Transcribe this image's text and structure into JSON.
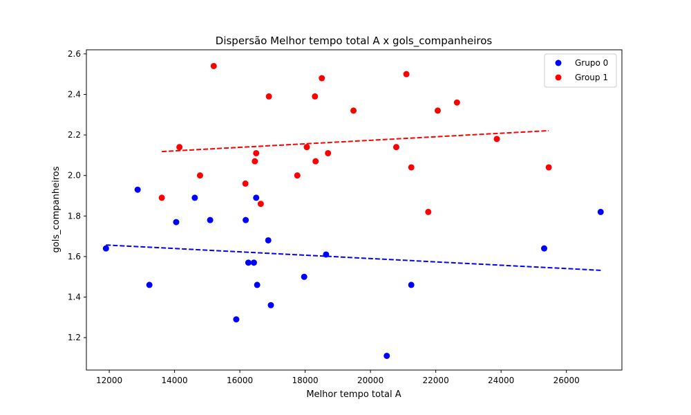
{
  "chart_data": {
    "type": "scatter",
    "title": "Dispersão Melhor tempo total A x gols_companheiros",
    "xlabel": "Melhor tempo total A",
    "ylabel": "gols_companheiros",
    "xlim": [
      11300,
      27700
    ],
    "ylim": [
      1.04,
      2.62
    ],
    "xticks": [
      12000,
      14000,
      16000,
      18000,
      20000,
      22000,
      24000,
      26000
    ],
    "yticks": [
      1.2,
      1.4,
      1.6,
      1.8,
      2.0,
      2.2,
      2.4,
      2.6
    ],
    "xtick_labels": [
      "12000",
      "14000",
      "16000",
      "18000",
      "20000",
      "22000",
      "24000",
      "26000"
    ],
    "ytick_labels": [
      "1.2",
      "1.4",
      "1.6",
      "1.8",
      "2.0",
      "2.2",
      "2.4",
      "2.6"
    ],
    "grid": false,
    "legend": "top-right",
    "series": [
      {
        "name": "Grupo 0",
        "color": "#0000ff",
        "points": [
          [
            11900,
            1.64
          ],
          [
            12870,
            1.93
          ],
          [
            13230,
            1.46
          ],
          [
            14050,
            1.77
          ],
          [
            14620,
            1.89
          ],
          [
            15090,
            1.78
          ],
          [
            15890,
            1.29
          ],
          [
            16180,
            1.78
          ],
          [
            16260,
            1.57
          ],
          [
            16430,
            1.57
          ],
          [
            16500,
            1.89
          ],
          [
            16530,
            1.46
          ],
          [
            16870,
            1.68
          ],
          [
            16950,
            1.36
          ],
          [
            17970,
            1.5
          ],
          [
            18640,
            1.61
          ],
          [
            20500,
            1.11
          ],
          [
            21250,
            1.46
          ],
          [
            25320,
            1.64
          ],
          [
            27050,
            1.82
          ]
        ],
        "trend": {
          "x": [
            11900,
            27050
          ],
          "y": [
            1.657,
            1.532
          ]
        }
      },
      {
        "name": "Group 1",
        "color": "#ff0000",
        "points": [
          [
            13610,
            1.89
          ],
          [
            14150,
            2.14
          ],
          [
            14780,
            2.0
          ],
          [
            15200,
            2.54
          ],
          [
            16170,
            1.96
          ],
          [
            16460,
            2.07
          ],
          [
            16500,
            2.11
          ],
          [
            16640,
            1.86
          ],
          [
            16890,
            2.39
          ],
          [
            17760,
            2.0
          ],
          [
            18050,
            2.14
          ],
          [
            18300,
            2.39
          ],
          [
            18320,
            2.07
          ],
          [
            18510,
            2.48
          ],
          [
            18700,
            2.11
          ],
          [
            19480,
            2.32
          ],
          [
            20790,
            2.14
          ],
          [
            21100,
            2.5
          ],
          [
            21250,
            2.04
          ],
          [
            21770,
            1.82
          ],
          [
            22060,
            2.32
          ],
          [
            22650,
            2.36
          ],
          [
            23870,
            2.18
          ],
          [
            25460,
            2.04
          ]
        ],
        "trend": {
          "x": [
            13610,
            25460
          ],
          "y": [
            2.118,
            2.221
          ]
        }
      }
    ]
  }
}
